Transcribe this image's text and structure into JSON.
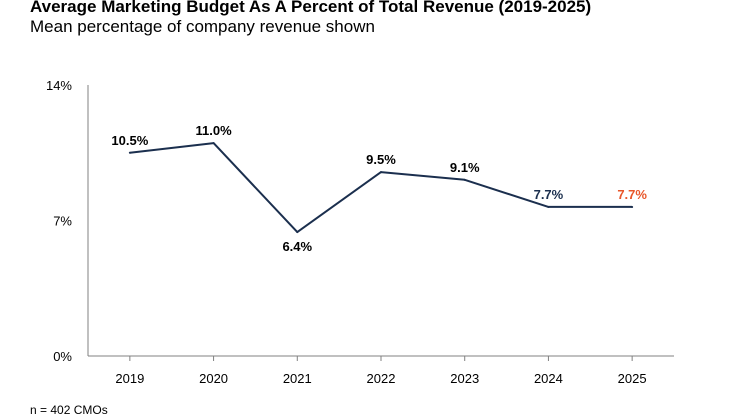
{
  "chart_data": {
    "type": "line",
    "title": "Average Marketing Budget As A Percent of Total Revenue (2019-2025)",
    "subtitle": "Mean percentage of company revenue shown",
    "xlabel": "",
    "ylabel": "",
    "categories": [
      "2019",
      "2020",
      "2021",
      "2022",
      "2023",
      "2024",
      "2025"
    ],
    "values": [
      10.5,
      11.0,
      6.4,
      9.5,
      9.1,
      7.7,
      7.7
    ],
    "data_labels": [
      "10.5%",
      "11.0%",
      "6.4%",
      "9.5%",
      "9.1%",
      "7.7%",
      "7.7%"
    ],
    "ylim": [
      0,
      14
    ],
    "y_ticks": [
      {
        "value": 0,
        "label": "0%"
      },
      {
        "value": 7,
        "label": "7%"
      },
      {
        "value": 14,
        "label": "14%"
      }
    ],
    "grid": false,
    "line_color": "#1b2f4e",
    "highlight_color": "#e8562a",
    "highlight_index": 6
  },
  "footnote": "n = 402 CMOs"
}
